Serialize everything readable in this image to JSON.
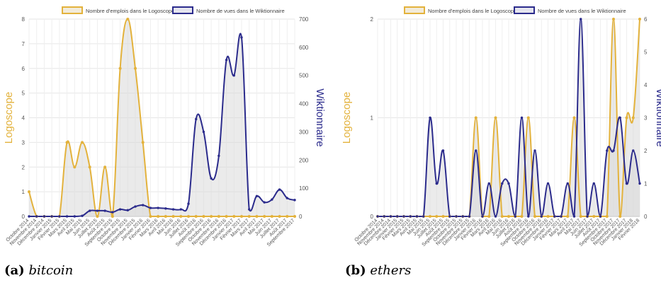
{
  "captions": [
    {
      "label": "(a)",
      "word": "bitcoin"
    },
    {
      "label": "(b)",
      "word": "ethers"
    }
  ],
  "chart_data": [
    {
      "type": "line",
      "subtype": "area",
      "legend": {
        "position": "top-center",
        "entries": [
          "Nombre d'emplois dans le Logoscope",
          "Nombre de vues dans le Wiktionnaire"
        ]
      },
      "ylabel_left": "Logoscope",
      "ylabel_right": "Wiktionnaire",
      "ylim_left": [
        0,
        8
      ],
      "ylim_right": [
        0,
        700
      ],
      "yticks_left": [
        0,
        1,
        2,
        3,
        4,
        5,
        6,
        7,
        8
      ],
      "yticks_right": [
        0,
        100,
        200,
        300,
        400,
        500,
        600,
        700
      ],
      "grid": true,
      "colors": {
        "logoscope": "#e3b23c",
        "wiktionnaire": "#2b2b8c",
        "fill": "#d8d8d8"
      },
      "categories": [
        "Octobre 2014",
        "Novembre 2014",
        "Décembre 2014",
        "Janvier 2015",
        "Février 2015",
        "Mars 2015",
        "Avril 2015",
        "Mai 2015",
        "Juin 2015",
        "Juillet 2015",
        "Août 2015",
        "Septembre 2015",
        "Octobre 2015",
        "Novembre 2015",
        "Décembre 2015",
        "Janvier 2016",
        "Février 2016",
        "Mars 2016",
        "Avril 2016",
        "Mai 2016",
        "Juin 2016",
        "Juillet 2016",
        "Août 2016",
        "Septembre 2016",
        "Octobre 2016",
        "Novembre 2016",
        "Décembre 2016",
        "Janvier 2017",
        "Février 2017",
        "Mars 2017",
        "Avril 2017",
        "Mai 2017",
        "Juin 2017",
        "Juillet 2017",
        "Août 2017",
        "Septembre 2017"
      ],
      "series": [
        {
          "name": "Nombre d'emplois dans le Logoscope",
          "axis": "left",
          "values": [
            1,
            0,
            0,
            0,
            0,
            3,
            2,
            3,
            2,
            0,
            2,
            0,
            6,
            8,
            6,
            3,
            0,
            0,
            0,
            0,
            0,
            0,
            0,
            0,
            0,
            0,
            0,
            0,
            0,
            0,
            0,
            0,
            0,
            0,
            0,
            0
          ]
        },
        {
          "name": "Nombre de vues dans le Wiktionnaire",
          "axis": "right",
          "values": [
            0,
            0,
            0,
            0,
            0,
            0,
            0,
            2,
            20,
            20,
            20,
            15,
            25,
            22,
            35,
            40,
            30,
            30,
            28,
            25,
            25,
            45,
            345,
            300,
            135,
            215,
            555,
            500,
            635,
            25,
            72,
            50,
            60,
            95,
            65,
            58
          ]
        }
      ]
    },
    {
      "type": "line",
      "subtype": "area",
      "legend": {
        "position": "top-center",
        "entries": [
          "Nombre d'emplois dans le Logoscope",
          "Nombre de vues dans le Wiktionnaire"
        ]
      },
      "ylabel_left": "Logoscope",
      "ylabel_right": "Wiktionnaire",
      "ylim_left": [
        0,
        2
      ],
      "ylim_right": [
        0,
        6
      ],
      "yticks_left": [
        0,
        1,
        2
      ],
      "yticks_right": [
        0,
        1,
        2,
        3,
        4,
        5,
        6
      ],
      "grid": true,
      "colors": {
        "logoscope": "#e3b23c",
        "wiktionnaire": "#2b2b8c",
        "fill": "#d8d8d8"
      },
      "categories": [
        "Octobre 2014",
        "Novembre 2014",
        "Décembre 2014",
        "Janvier 2015",
        "Février 2015",
        "Mars 2015",
        "Avril 2015",
        "Mai 2015",
        "Juin 2015",
        "Juillet 2015",
        "Août 2015",
        "Septembre 2015",
        "Octobre 2015",
        "Novembre 2015",
        "Décembre 2015",
        "Janvier 2016",
        "Février 2016",
        "Mars 2016",
        "Avril 2016",
        "Mai 2016",
        "Juin 2016",
        "Juillet 2016",
        "Août 2016",
        "Septembre 2016",
        "Octobre 2016",
        "Novembre 2016",
        "Décembre 2016",
        "Janvier 2017",
        "Février 2017",
        "Mars 2017",
        "Avril 2017",
        "Mai 2017",
        "Juin 2017",
        "Juillet 2017",
        "Août 2017",
        "Septembre 2017",
        "Octobre 2017",
        "Novembre 2017",
        "Décembre 2017",
        "Janvier 2018",
        "Février 2018"
      ],
      "series": [
        {
          "name": "Nombre d'emplois dans le Logoscope",
          "axis": "left",
          "values": [
            0,
            0,
            0,
            0,
            0,
            0,
            0,
            0,
            0,
            0,
            0,
            0,
            0,
            0,
            0,
            1,
            0,
            0,
            1,
            0,
            0,
            0,
            0,
            1,
            0,
            0,
            0,
            0,
            0,
            0,
            1,
            0,
            0,
            0,
            0,
            0,
            2,
            0,
            1,
            1,
            2
          ]
        },
        {
          "name": "Nombre de vues dans le Wiktionnaire",
          "axis": "right",
          "values": [
            0,
            0,
            0,
            0,
            0,
            0,
            0,
            0,
            3,
            1,
            2,
            0,
            0,
            0,
            0,
            2,
            0,
            1,
            0,
            1,
            1,
            0,
            3,
            0,
            2,
            0,
            1,
            0,
            0,
            1,
            0,
            6,
            0,
            1,
            0,
            2,
            2,
            3,
            1,
            2,
            1
          ]
        }
      ]
    }
  ]
}
